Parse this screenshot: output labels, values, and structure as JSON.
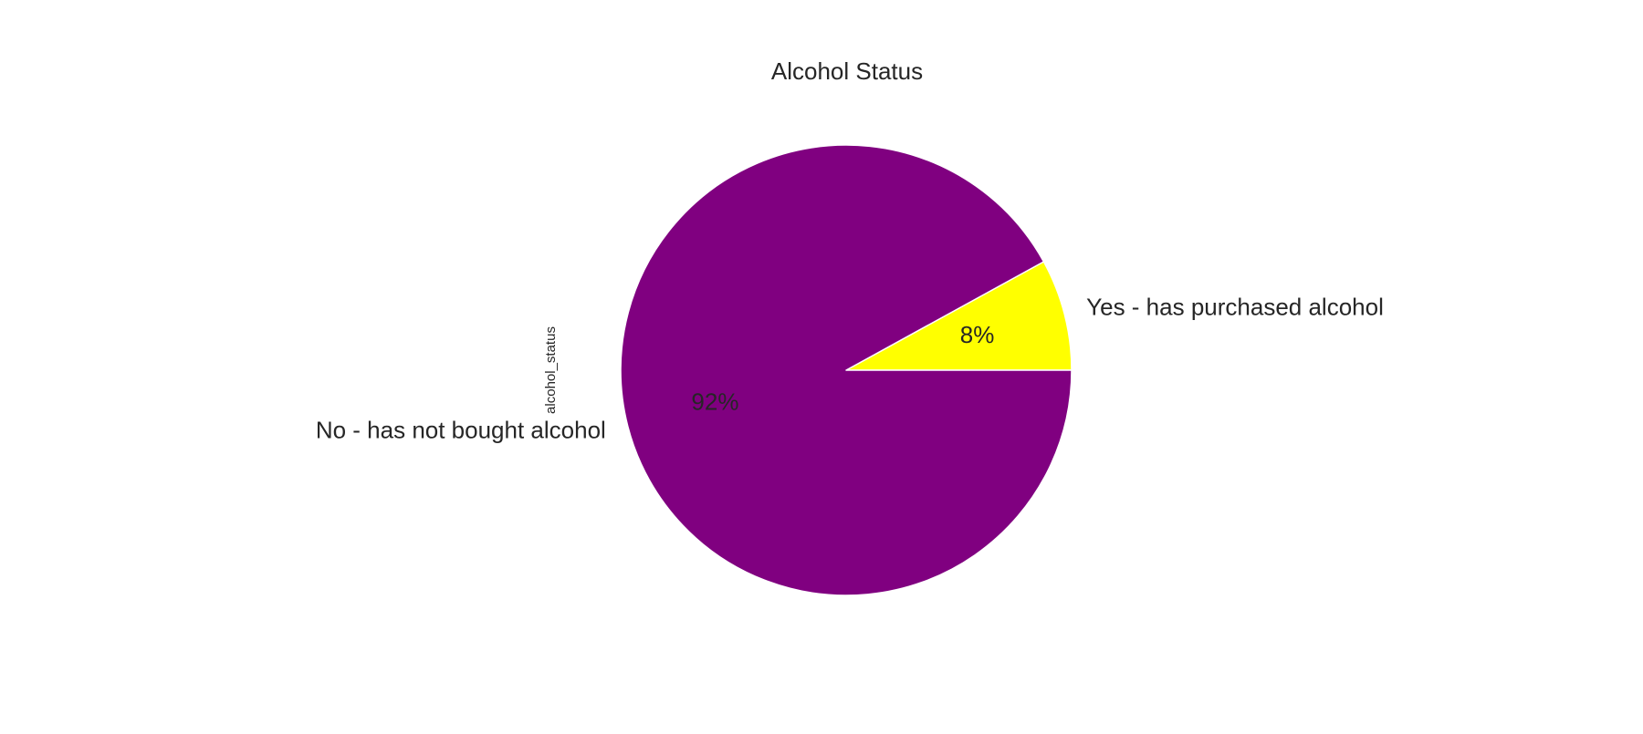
{
  "chart_data": {
    "type": "pie",
    "title": "Alcohol Status",
    "ylabel": "alcohol_status",
    "xlabel": "",
    "labels": [
      "Yes - has purchased alcohol",
      "No - has not bought alcohol"
    ],
    "values": [
      8,
      92
    ],
    "autopct": [
      "8%",
      "92%"
    ],
    "colors": [
      "#ffff00",
      "#800080"
    ],
    "start_angle_deg": 0,
    "direction": "counterclockwise",
    "edge_color": "#ffffff"
  }
}
